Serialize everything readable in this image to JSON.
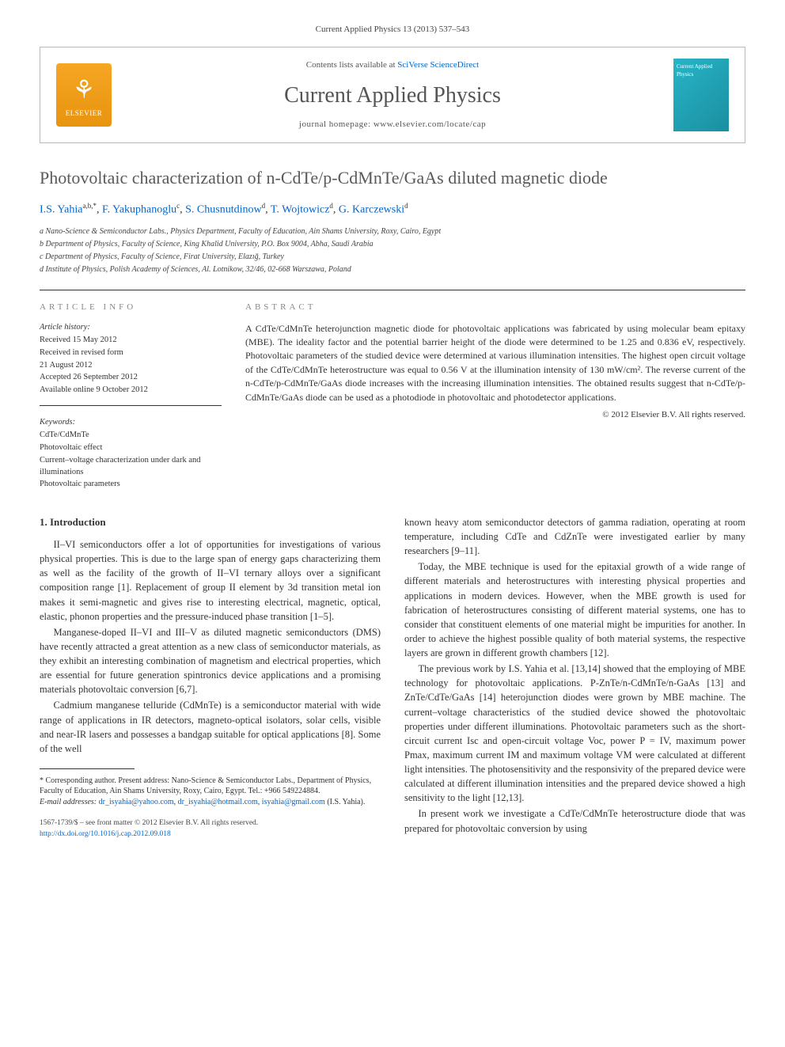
{
  "citation": "Current Applied Physics 13 (2013) 537–543",
  "header": {
    "contents_prefix": "Contents lists available at ",
    "contents_link": "SciVerse ScienceDirect",
    "journal": "Current Applied Physics",
    "homepage_prefix": "journal homepage: ",
    "homepage_url": "www.elsevier.com/locate/cap",
    "publisher_label": "ELSEVIER",
    "cover_text": "Current Applied Physics"
  },
  "title": "Photovoltaic characterization of n-CdTe/p-CdMnTe/GaAs diluted magnetic diode",
  "authors": [
    {
      "name": "I.S. Yahia",
      "marks": "a,b,*"
    },
    {
      "name": "F. Yakuphanoglu",
      "marks": "c"
    },
    {
      "name": "S. Chusnutdinow",
      "marks": "d"
    },
    {
      "name": "T. Wojtowicz",
      "marks": "d"
    },
    {
      "name": "G. Karczewski",
      "marks": "d"
    }
  ],
  "affiliations": [
    "a Nano-Science & Semiconductor Labs., Physics Department, Faculty of Education, Ain Shams University, Roxy, Cairo, Egypt",
    "b Department of Physics, Faculty of Science, King Khalid University, P.O. Box 9004, Abha, Saudi Arabia",
    "c Department of Physics, Faculty of Science, Firat University, Elazığ, Turkey",
    "d Institute of Physics, Polish Academy of Sciences, Al. Lotnikow, 32/46, 02-668 Warszawa, Poland"
  ],
  "article_info": {
    "heading": "ARTICLE INFO",
    "history_label": "Article history:",
    "history": [
      "Received 15 May 2012",
      "Received in revised form",
      "21 August 2012",
      "Accepted 26 September 2012",
      "Available online 9 October 2012"
    ],
    "keywords_label": "Keywords:",
    "keywords": [
      "CdTe/CdMnTe",
      "Photovoltaic effect",
      "Current–voltage characterization under dark and illuminations",
      "Photovoltaic parameters"
    ]
  },
  "abstract": {
    "heading": "ABSTRACT",
    "text": "A CdTe/CdMnTe heterojunction magnetic diode for photovoltaic applications was fabricated by using molecular beam epitaxy (MBE). The ideality factor and the potential barrier height of the diode were determined to be 1.25 and 0.836 eV, respectively. Photovoltaic parameters of the studied device were determined at various illumination intensities. The highest open circuit voltage of the CdTe/CdMnTe heterostructure was equal to 0.56 V at the illumination intensity of 130 mW/cm². The reverse current of the n-CdTe/p-CdMnTe/GaAs diode increases with the increasing illumination intensities. The obtained results suggest that n-CdTe/p-CdMnTe/GaAs diode can be used as a photodiode in photovoltaic and photodetector applications.",
    "copyright": "© 2012 Elsevier B.V. All rights reserved."
  },
  "body": {
    "section_number": "1.",
    "section_title": "Introduction",
    "left_paras": [
      "II–VI semiconductors offer a lot of opportunities for investigations of various physical properties. This is due to the large span of energy gaps characterizing them as well as the facility of the growth of II–VI ternary alloys over a significant composition range [1]. Replacement of group II element by 3d transition metal ion makes it semi-magnetic and gives rise to interesting electrical, magnetic, optical, elastic, phonon properties and the pressure-induced phase transition [1–5].",
      "Manganese-doped II–VI and III–V as diluted magnetic semiconductors (DMS) have recently attracted a great attention as a new class of semiconductor materials, as they exhibit an interesting combination of magnetism and electrical properties, which are essential for future generation spintronics device applications and a promising materials photovoltaic conversion [6,7].",
      "Cadmium manganese telluride (CdMnTe) is a semiconductor material with wide range of applications in IR detectors, magneto-optical isolators, solar cells, visible and near-IR lasers and possesses a bandgap suitable for optical applications [8]. Some of the well"
    ],
    "right_paras": [
      "known heavy atom semiconductor detectors of gamma radiation, operating at room temperature, including CdTe and CdZnTe were investigated earlier by many researchers [9–11].",
      "Today, the MBE technique is used for the epitaxial growth of a wide range of different materials and heterostructures with interesting physical properties and applications in modern devices. However, when the MBE growth is used for fabrication of heterostructures consisting of different material systems, one has to consider that constituent elements of one material might be impurities for another. In order to achieve the highest possible quality of both material systems, the respective layers are grown in different growth chambers [12].",
      "The previous work by I.S. Yahia et al. [13,14] showed that the employing of MBE technology for photovoltaic applications. P-ZnTe/n-CdMnTe/n-GaAs [13] and ZnTe/CdTe/GaAs [14] heterojunction diodes were grown by MBE machine. The current–voltage characteristics of the studied device showed the photovoltaic properties under different illuminations. Photovoltaic parameters such as the short-circuit current Isc and open-circuit voltage Voc, power P = IV, maximum power Pmax, maximum current IM and maximum voltage VM were calculated at different light intensities. The photosensitivity and the responsivity of the prepared device were calculated at different illumination intensities and the prepared device showed a high sensitivity to the light [12,13].",
      "In present work we investigate a CdTe/CdMnTe heterostructure diode that was prepared for photovoltaic conversion by using"
    ]
  },
  "footnote": {
    "corr_label": "* Corresponding author. Present address: Nano-Science & Semiconductor Labs., Department of Physics, Faculty of Education, Ain Shams University, Roxy, Cairo, Egypt. Tel.: +966 549224884.",
    "email_label": "E-mail addresses:",
    "emails": [
      "dr_isyahia@yahoo.com",
      "dr_isyahia@hotmail.com",
      "isyahia@gmail.com"
    ],
    "email_owner": "(I.S. Yahia)."
  },
  "footer": {
    "issn_line": "1567-1739/$ – see front matter © 2012 Elsevier B.V. All rights reserved.",
    "doi": "http://dx.doi.org/10.1016/j.cap.2012.09.018"
  },
  "colors": {
    "link": "#0066cc",
    "heading_gray": "#5a5a5a",
    "border": "#333333",
    "elsevier_orange": "#e8940f",
    "cover_teal": "#28b4c8"
  }
}
